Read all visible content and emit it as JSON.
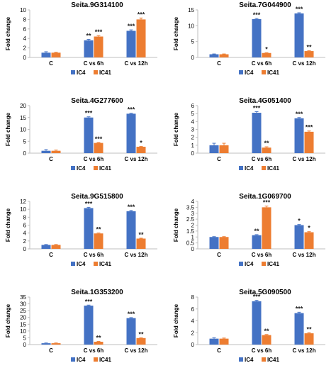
{
  "colors": {
    "IC4": "#4472C4",
    "IC41": "#ED7D31",
    "axis": "#bfbfbf",
    "text": "#000000"
  },
  "chart_data": [
    {
      "type": "bar",
      "title": "Seita.9G314100",
      "ylabel": "Fold change",
      "categories": [
        "C",
        "C vs 6h",
        "C vs 12h"
      ],
      "ylim": [
        0,
        10
      ],
      "yticks": [
        0,
        2,
        4,
        6,
        8,
        10
      ],
      "series": [
        {
          "name": "IC4",
          "values": [
            1.0,
            3.6,
            5.6
          ],
          "errors": [
            0.2,
            0.2,
            0.2
          ],
          "sig": [
            "",
            "**",
            "***"
          ]
        },
        {
          "name": "IC41",
          "values": [
            1.0,
            4.4,
            8.0
          ],
          "errors": [
            0.1,
            0.2,
            0.3
          ],
          "sig": [
            "",
            "***",
            "***"
          ]
        }
      ],
      "legend": "bottom"
    },
    {
      "type": "bar",
      "title": "Seita.7G044900",
      "ylabel": "Fold change",
      "categories": [
        "C",
        "C vs 6h",
        "C vs 12h"
      ],
      "ylim": [
        0,
        15
      ],
      "yticks": [
        0,
        5,
        10,
        15
      ],
      "series": [
        {
          "name": "IC4",
          "values": [
            1.0,
            12.1,
            13.9
          ],
          "errors": [
            0.1,
            0.2,
            0.2
          ],
          "sig": [
            "",
            "***",
            "***"
          ]
        },
        {
          "name": "IC41",
          "values": [
            1.0,
            1.4,
            2.0
          ],
          "errors": [
            0.1,
            0.1,
            0.1
          ],
          "sig": [
            "",
            "*",
            "**"
          ]
        }
      ],
      "legend": "bottom"
    },
    {
      "type": "bar",
      "title": "Seita.4G277600",
      "ylabel": "Fold change",
      "categories": [
        "C",
        "C vs 6h",
        "C vs 12h"
      ],
      "ylim": [
        0,
        20
      ],
      "yticks": [
        0,
        5,
        10,
        15,
        20
      ],
      "series": [
        {
          "name": "IC4",
          "values": [
            1.0,
            15.0,
            16.6
          ],
          "errors": [
            0.5,
            0.3,
            0.2
          ],
          "sig": [
            "",
            "***",
            "***"
          ]
        },
        {
          "name": "IC41",
          "values": [
            1.0,
            4.3,
            2.7
          ],
          "errors": [
            0.3,
            0.2,
            0.1
          ],
          "sig": [
            "",
            "***",
            "*"
          ]
        }
      ],
      "legend": "bottom"
    },
    {
      "type": "bar",
      "title": "Seita.4G051400",
      "ylabel": "Fold change",
      "categories": [
        "C",
        "C vs 6h",
        "C vs 12h"
      ],
      "ylim": [
        0,
        6
      ],
      "yticks": [
        0,
        1,
        2,
        3,
        4,
        5,
        6
      ],
      "series": [
        {
          "name": "IC4",
          "values": [
            1.0,
            5.1,
            4.4
          ],
          "errors": [
            0.25,
            0.15,
            0.1
          ],
          "sig": [
            "",
            "***",
            "***"
          ]
        },
        {
          "name": "IC41",
          "values": [
            1.0,
            0.7,
            2.7
          ],
          "errors": [
            0.25,
            0.1,
            0.1
          ],
          "sig": [
            "",
            "**",
            "***"
          ]
        }
      ],
      "legend": "bottom"
    },
    {
      "type": "bar",
      "title": "Seita.9G515800",
      "ylabel": "Fold change",
      "categories": [
        "C",
        "C vs 6h",
        "C vs 12h"
      ],
      "ylim": [
        0,
        12
      ],
      "yticks": [
        0,
        2,
        4,
        6,
        8,
        10,
        12
      ],
      "series": [
        {
          "name": "IC4",
          "values": [
            1.0,
            10.3,
            9.5
          ],
          "errors": [
            0.1,
            0.2,
            0.2
          ],
          "sig": [
            "",
            "***",
            "***"
          ]
        },
        {
          "name": "IC41",
          "values": [
            1.0,
            3.9,
            2.6
          ],
          "errors": [
            0.1,
            0.1,
            0.1
          ],
          "sig": [
            "",
            "**",
            "**"
          ]
        }
      ],
      "legend": "bottom"
    },
    {
      "type": "bar",
      "title": "Seita.1G069700",
      "ylabel": "Fold change",
      "categories": [
        "C",
        "C vs 6h",
        "C vs 12h"
      ],
      "ylim": [
        0,
        4
      ],
      "yticks": [
        0,
        0.5,
        1,
        1.5,
        2,
        2.5,
        3,
        3.5,
        4
      ],
      "series": [
        {
          "name": "IC4",
          "values": [
            1.0,
            1.15,
            2.0
          ],
          "errors": [
            0.03,
            0.05,
            0.05
          ],
          "sig": [
            "",
            "**",
            "*"
          ]
        },
        {
          "name": "IC41",
          "values": [
            1.0,
            3.5,
            1.4
          ],
          "errors": [
            0.03,
            0.1,
            0.05
          ],
          "sig": [
            "",
            "***",
            "*"
          ]
        }
      ],
      "legend": "bottom"
    },
    {
      "type": "bar",
      "title": "Seita.1G353200",
      "ylabel": "Fold change",
      "categories": [
        "C",
        "C vs 6h",
        "C vs 12h"
      ],
      "ylim": [
        0,
        35
      ],
      "yticks": [
        0,
        5,
        10,
        15,
        20,
        25,
        30,
        35
      ],
      "series": [
        {
          "name": "IC4",
          "values": [
            1.0,
            28.7,
            19.5
          ],
          "errors": [
            0.2,
            0.4,
            0.4
          ],
          "sig": [
            "",
            "***",
            "***"
          ]
        },
        {
          "name": "IC41",
          "values": [
            1.0,
            2.1,
            4.8
          ],
          "errors": [
            0.2,
            0.2,
            0.2
          ],
          "sig": [
            "",
            "**",
            "**"
          ]
        }
      ],
      "legend": "bottom"
    },
    {
      "type": "bar",
      "title": "Seita.5G090500",
      "ylabel": "Fold change",
      "categories": [
        "C",
        "C vs 6h",
        "C vs 12h"
      ],
      "ylim": [
        0,
        8
      ],
      "yticks": [
        0,
        2,
        4,
        6,
        8
      ],
      "series": [
        {
          "name": "IC4",
          "values": [
            1.0,
            7.3,
            5.3
          ],
          "errors": [
            0.15,
            0.15,
            0.15
          ],
          "sig": [
            "",
            "***",
            "***"
          ]
        },
        {
          "name": "IC41",
          "values": [
            1.0,
            1.6,
            1.9
          ],
          "errors": [
            0.1,
            0.1,
            0.1
          ],
          "sig": [
            "",
            "**",
            "**"
          ]
        }
      ],
      "legend": "bottom"
    }
  ]
}
